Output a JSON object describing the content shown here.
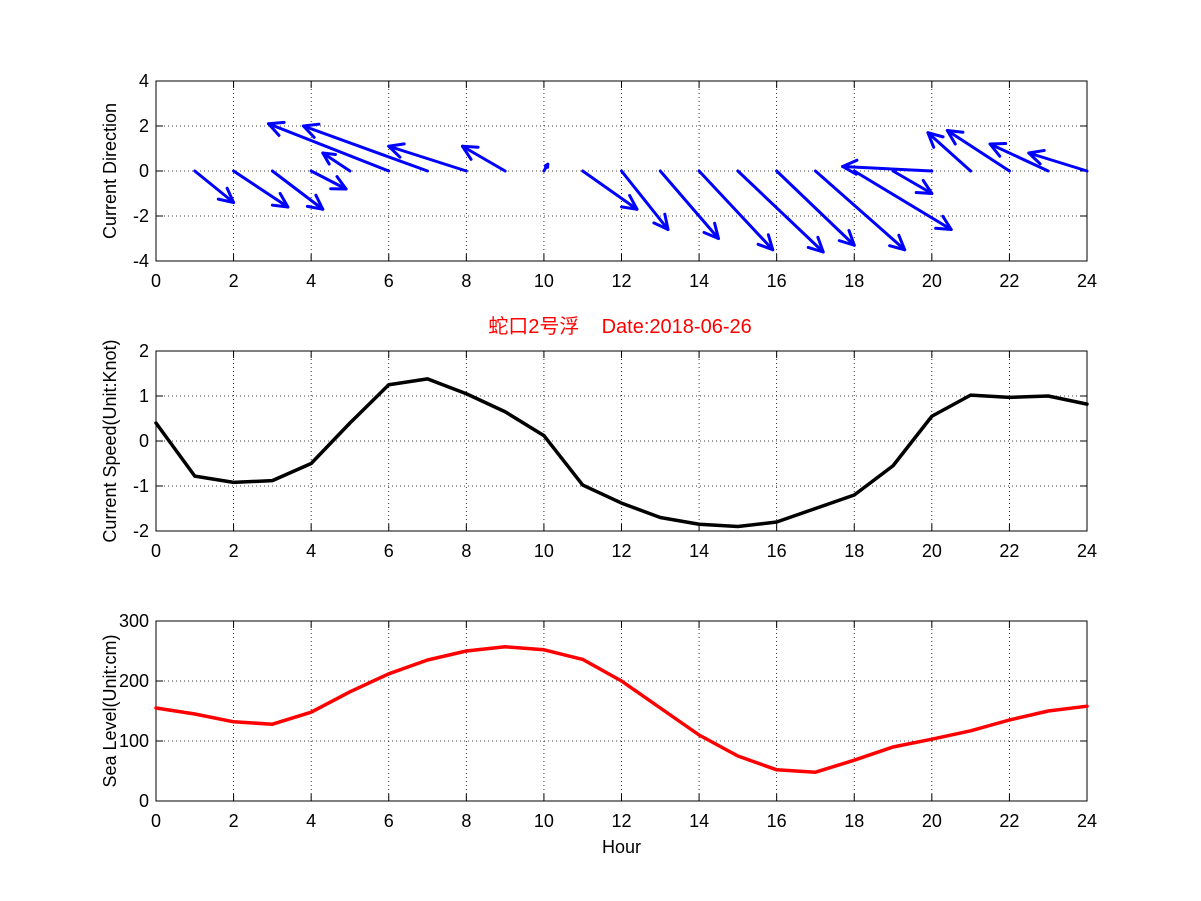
{
  "title": "蛇口2号浮    Date:2018-06-26",
  "colors": {
    "direction": "#0000ff",
    "speed": "#000000",
    "sea_level": "#ff0000",
    "title": "#ff0000",
    "axes": "#000000",
    "grid": "#000000",
    "background": "#ffffff"
  },
  "chart_data": [
    {
      "type": "quiver",
      "ylabel": "Current Direction",
      "xlabel": "",
      "xlim": [
        0,
        24
      ],
      "ylim": [
        -4,
        4
      ],
      "x_ticks": [
        0,
        2,
        4,
        6,
        8,
        10,
        12,
        14,
        16,
        18,
        20,
        22,
        24
      ],
      "y_ticks": [
        -4,
        -2,
        0,
        2,
        4
      ],
      "grid": true,
      "series": [
        {
          "x": [
            1,
            2,
            3,
            4,
            5,
            6,
            7,
            8,
            9,
            10,
            11,
            12,
            13,
            14,
            15,
            16,
            17,
            18,
            19,
            20,
            21,
            22,
            23,
            24
          ],
          "u": [
            1.0,
            1.4,
            1.3,
            0.9,
            -0.7,
            -3.1,
            -3.2,
            -2.0,
            -1.1,
            0.1,
            1.4,
            1.2,
            1.5,
            1.9,
            2.2,
            2.0,
            2.3,
            2.5,
            1.0,
            -2.3,
            -1.1,
            -1.6,
            -1.5,
            -1.5
          ],
          "v": [
            -1.4,
            -1.6,
            -1.7,
            -0.8,
            0.8,
            2.1,
            2.0,
            1.1,
            1.1,
            0.3,
            -1.7,
            -2.6,
            -3.0,
            -3.5,
            -3.6,
            -3.3,
            -3.5,
            -2.6,
            -1.0,
            0.2,
            1.7,
            1.8,
            1.2,
            0.8
          ]
        }
      ]
    },
    {
      "type": "line",
      "ylabel": "Current Speed(Unit:Knot)",
      "xlabel": "",
      "xlim": [
        0,
        24
      ],
      "ylim": [
        -2,
        2
      ],
      "x_ticks": [
        0,
        2,
        4,
        6,
        8,
        10,
        12,
        14,
        16,
        18,
        20,
        22,
        24
      ],
      "y_ticks": [
        -2,
        -1,
        0,
        1,
        2
      ],
      "grid": true,
      "series": [
        {
          "x": [
            0,
            1,
            2,
            3,
            4,
            5,
            6,
            7,
            8,
            9,
            10,
            11,
            12,
            13,
            14,
            15,
            16,
            17,
            18,
            19,
            20,
            21,
            22,
            23,
            24
          ],
          "y": [
            0.4,
            -0.78,
            -0.92,
            -0.88,
            -0.5,
            0.4,
            1.25,
            1.38,
            1.05,
            0.65,
            0.12,
            -0.98,
            -1.38,
            -1.7,
            -1.85,
            -1.9,
            -1.8,
            -1.5,
            -1.2,
            -0.55,
            0.55,
            1.02,
            0.97,
            1.0,
            0.82
          ]
        }
      ]
    },
    {
      "type": "line",
      "ylabel": "Sea Level(Unit:cm)",
      "xlabel": "Hour",
      "xlim": [
        0,
        24
      ],
      "ylim": [
        0,
        300
      ],
      "x_ticks": [
        0,
        2,
        4,
        6,
        8,
        10,
        12,
        14,
        16,
        18,
        20,
        22,
        24
      ],
      "y_ticks": [
        0,
        100,
        200,
        300
      ],
      "grid": true,
      "series": [
        {
          "x": [
            0,
            1,
            2,
            3,
            4,
            5,
            6,
            7,
            8,
            9,
            10,
            11,
            12,
            13,
            14,
            15,
            16,
            17,
            18,
            19,
            20,
            21,
            22,
            23,
            24
          ],
          "y": [
            155,
            145,
            132,
            128,
            148,
            182,
            212,
            235,
            250,
            257,
            252,
            236,
            200,
            155,
            110,
            75,
            52,
            48,
            68,
            90,
            103,
            117,
            135,
            150,
            158
          ]
        }
      ]
    }
  ]
}
